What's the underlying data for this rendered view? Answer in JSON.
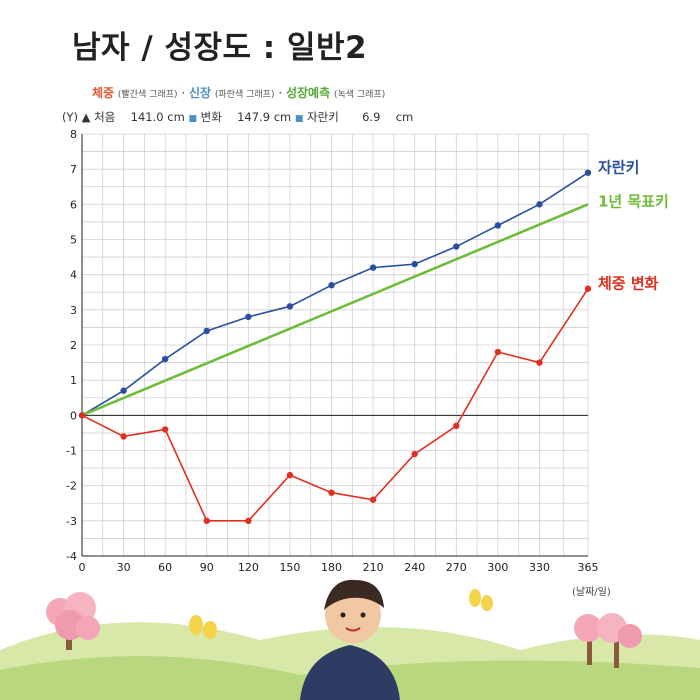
{
  "header": {
    "title": "남자 / 성장도 : 일반2"
  },
  "legend": {
    "weight": "체중",
    "weight_note": "(빨간색 그래프)",
    "height": "신장",
    "height_note": "(파란색 그래프)",
    "forecast": "성장예측",
    "forecast_note": "(녹색 그래프)",
    "sep": "·"
  },
  "info": {
    "y_marker": "(Y)",
    "start_label": "처음",
    "start_value": "141.0",
    "start_unit": "cm",
    "change_label": "변화",
    "change_value": "147.9",
    "change_unit": "cm",
    "grown_label": "자란키",
    "grown_value": "6.9",
    "grown_unit": "cm"
  },
  "x_unit": "(날짜/일)",
  "colors": {
    "height": "#2b4fa0",
    "forecast": "#6fbb3a",
    "weight": "#e03020",
    "weight_legend": "#e8572c",
    "height_legend": "#4a90c8",
    "forecast_legend": "#55a832",
    "grid": "#d0d0d0",
    "zero_line": "#222222"
  },
  "chart_data": {
    "type": "line",
    "x": [
      0,
      30,
      60,
      90,
      120,
      150,
      180,
      210,
      240,
      270,
      300,
      330,
      365
    ],
    "xlim": [
      0,
      365
    ],
    "ylim": [
      -4,
      8
    ],
    "x_ticks": [
      0,
      30,
      60,
      90,
      120,
      150,
      180,
      210,
      240,
      270,
      300,
      330,
      365
    ],
    "y_ticks": [
      -4,
      -3,
      -2,
      -1,
      0,
      1,
      2,
      3,
      4,
      5,
      6,
      7,
      8
    ],
    "grid": true,
    "series": [
      {
        "name": "자란키",
        "color": "#2b4fa0",
        "markers": true,
        "values": [
          0,
          0.7,
          1.6,
          2.4,
          2.8,
          3.1,
          3.7,
          4.2,
          4.3,
          4.8,
          5.4,
          6.0,
          6.9
        ]
      },
      {
        "name": "1년 목표키",
        "color": "#6fbb3a",
        "markers": false,
        "x": [
          0,
          365
        ],
        "values": [
          0,
          6.0
        ]
      },
      {
        "name": "체중 변화",
        "color": "#e03020",
        "markers": true,
        "values": [
          0,
          -0.6,
          -0.4,
          -3.0,
          -3.0,
          -1.7,
          -2.2,
          -2.4,
          -1.1,
          -0.3,
          1.8,
          1.5,
          3.6
        ]
      }
    ]
  }
}
